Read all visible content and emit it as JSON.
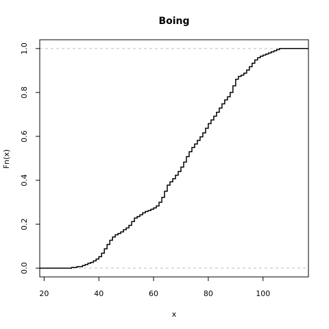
{
  "chart_data": {
    "type": "line",
    "title": "Boing",
    "xlabel": "x",
    "ylabel": "Fn(x)",
    "xlim": [
      18.4,
      116.6
    ],
    "ylim": [
      -0.04,
      1.04
    ],
    "x_ticks": [
      20,
      40,
      60,
      80,
      100
    ],
    "y_ticks": [
      0.0,
      0.2,
      0.4,
      0.6,
      0.8,
      1.0
    ],
    "x_tick_labels": [
      "20",
      "40",
      "60",
      "80",
      "100"
    ],
    "y_tick_labels": [
      "0.0",
      "0.2",
      "0.4",
      "0.6",
      "0.8",
      "1.0"
    ],
    "reference_lines_y": [
      0,
      1
    ],
    "series": [
      {
        "x": [
          18.4,
          28,
          30,
          32,
          34,
          35,
          36,
          37,
          38,
          39,
          40,
          41,
          42,
          43,
          44,
          45,
          46,
          47,
          48,
          49,
          50,
          51,
          52,
          53,
          54,
          55,
          56,
          57,
          58,
          59,
          60,
          61,
          62,
          63,
          64,
          65,
          66,
          67,
          68,
          69,
          70,
          71,
          72,
          73,
          74,
          75,
          76,
          77,
          78,
          79,
          80,
          81,
          82,
          83,
          84,
          85,
          86,
          87,
          88,
          89,
          90,
          91,
          92,
          93,
          94,
          95,
          96,
          97,
          98,
          99,
          100,
          101,
          102,
          103,
          104,
          105,
          106,
          107,
          108,
          116.6
        ],
        "y": [
          0,
          0,
          0.003,
          0.007,
          0.012,
          0.016,
          0.022,
          0.026,
          0.033,
          0.041,
          0.052,
          0.068,
          0.088,
          0.108,
          0.127,
          0.142,
          0.152,
          0.158,
          0.165,
          0.175,
          0.183,
          0.195,
          0.212,
          0.228,
          0.235,
          0.243,
          0.252,
          0.258,
          0.262,
          0.268,
          0.274,
          0.283,
          0.3,
          0.322,
          0.35,
          0.378,
          0.393,
          0.407,
          0.423,
          0.44,
          0.46,
          0.483,
          0.508,
          0.53,
          0.549,
          0.565,
          0.582,
          0.598,
          0.616,
          0.637,
          0.658,
          0.675,
          0.692,
          0.71,
          0.729,
          0.748,
          0.766,
          0.78,
          0.8,
          0.83,
          0.86,
          0.873,
          0.879,
          0.888,
          0.902,
          0.917,
          0.933,
          0.948,
          0.958,
          0.965,
          0.97,
          0.975,
          0.98,
          0.985,
          0.99,
          0.995,
          1.0,
          1.0,
          1.0,
          1.0
        ]
      }
    ],
    "grid": false,
    "legend": "none",
    "colors": {
      "line": "#000000",
      "reference_line": "#bebebe",
      "frame": "#000000"
    }
  }
}
